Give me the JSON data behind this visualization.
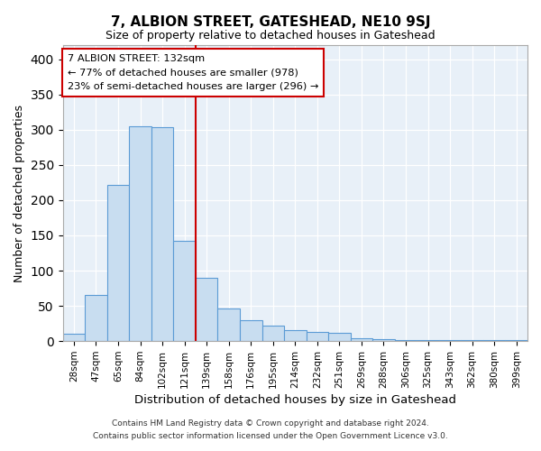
{
  "title": "7, ALBION STREET, GATESHEAD, NE10 9SJ",
  "subtitle": "Size of property relative to detached houses in Gateshead",
  "xlabel": "Distribution of detached houses by size in Gateshead",
  "ylabel": "Number of detached properties",
  "bar_labels": [
    "28sqm",
    "47sqm",
    "65sqm",
    "84sqm",
    "102sqm",
    "121sqm",
    "139sqm",
    "158sqm",
    "176sqm",
    "195sqm",
    "214sqm",
    "232sqm",
    "251sqm",
    "269sqm",
    "288sqm",
    "306sqm",
    "325sqm",
    "343sqm",
    "362sqm",
    "380sqm",
    "399sqm"
  ],
  "bar_heights": [
    10,
    65,
    222,
    305,
    303,
    142,
    90,
    46,
    30,
    22,
    16,
    13,
    12,
    4,
    3,
    2,
    1,
    1,
    1,
    1,
    1
  ],
  "bar_color": "#c8ddf0",
  "bar_edge_color": "#5b9bd5",
  "vline_color": "#cc0000",
  "annotation_title": "7 ALBION STREET: 132sqm",
  "annotation_line1": "← 77% of detached houses are smaller (978)",
  "annotation_line2": "23% of semi-detached houses are larger (296) →",
  "annotation_box_edge": "#cc0000",
  "ylim": [
    0,
    420
  ],
  "yticks": [
    0,
    50,
    100,
    150,
    200,
    250,
    300,
    350,
    400
  ],
  "plot_bg_color": "#e8f0f8",
  "footer1": "Contains HM Land Registry data © Crown copyright and database right 2024.",
  "footer2": "Contains public sector information licensed under the Open Government Licence v3.0."
}
